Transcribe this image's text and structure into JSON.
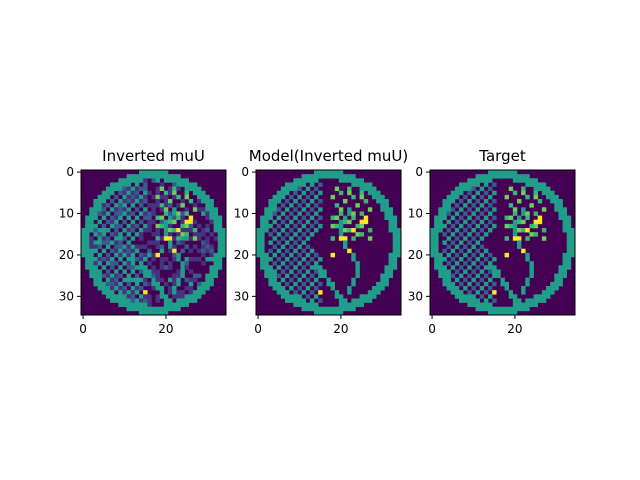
{
  "chart_data": [
    {
      "type": "heatmap",
      "title": "Inverted muU",
      "grid_size": [
        35,
        35
      ],
      "xticks": [
        0,
        20
      ],
      "yticks": [
        0,
        10,
        20,
        30
      ],
      "xlim": [
        -0.5,
        34.5
      ],
      "ylim": [
        34.5,
        -0.5
      ],
      "colormap": "viridis",
      "grid": false
    },
    {
      "type": "heatmap",
      "title": "Model(Inverted muU)",
      "grid_size": [
        35,
        35
      ],
      "xticks": [
        0,
        20
      ],
      "yticks": [
        0,
        10,
        20,
        30
      ],
      "xlim": [
        -0.5,
        34.5
      ],
      "ylim": [
        34.5,
        -0.5
      ],
      "colormap": "viridis",
      "grid": false
    },
    {
      "type": "heatmap",
      "title": "Target",
      "grid_size": [
        35,
        35
      ],
      "xticks": [
        0,
        20
      ],
      "yticks": [
        0,
        10,
        20,
        30
      ],
      "xlim": [
        -0.5,
        34.5
      ],
      "ylim": [
        34.5,
        -0.5
      ],
      "colormap": "viridis",
      "grid": false
    }
  ],
  "colors": {
    "background": "#440154",
    "dark": "#46327e",
    "mid": "#365c8d",
    "teal": "#1f9e89",
    "green": "#35b779",
    "light": "#6ece58",
    "bright": "#fde725"
  }
}
